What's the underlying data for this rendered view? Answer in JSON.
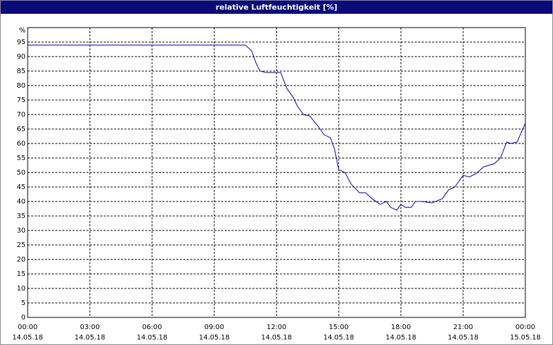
{
  "chart_data": {
    "type": "line",
    "title": "relative Luftfeuchtigkeit [%]",
    "y_label": "%",
    "x": [
      0,
      10,
      10.5,
      10.8,
      11,
      11.2,
      11.5,
      12,
      12.2,
      12.5,
      12.8,
      13,
      13.3,
      13.6,
      14,
      14.3,
      14.6,
      14.8,
      15,
      15.3,
      15.6,
      16,
      16.3,
      16.6,
      17,
      17.3,
      17.5,
      17.8,
      18,
      18.2,
      18.5,
      18.7,
      19,
      19.5,
      20,
      20.3,
      20.6,
      21,
      21.3,
      21.6,
      22,
      22.5,
      22.8,
      23.1,
      23.3,
      23.6,
      24
    ],
    "series": [
      {
        "color": "#0000a0",
        "values": [
          94,
          94,
          94,
          92,
          88,
          85,
          84.5,
          84.5,
          84.5,
          79,
          76,
          73,
          70,
          69.5,
          66,
          63,
          62,
          58,
          51,
          50,
          46,
          43,
          43,
          41,
          39,
          40,
          38,
          37,
          39,
          38,
          38,
          40,
          40,
          39.5,
          41,
          44,
          45,
          49,
          48.5,
          49.5,
          52,
          53,
          55,
          60.5,
          60,
          60.5,
          67
        ]
      }
    ],
    "xlim": [
      0,
      24
    ],
    "xticks": [
      {
        "value": 0,
        "label": "00:00"
      },
      {
        "value": 3,
        "label": "03:00"
      },
      {
        "value": 6,
        "label": "06:00"
      },
      {
        "value": 9,
        "label": "09:00"
      },
      {
        "value": 12,
        "label": "12:00"
      },
      {
        "value": 15,
        "label": "15:00"
      },
      {
        "value": 18,
        "label": "18:00"
      },
      {
        "value": 21,
        "label": "21:00"
      },
      {
        "value": 24,
        "label": "00:00"
      }
    ],
    "xtick_dates": [
      "14.05.18",
      "14.05.18",
      "14.05.18",
      "14.05.18",
      "14.05.18",
      "14.05.18",
      "14.05.18",
      "14.05.18",
      "15.05.18"
    ],
    "ylim": [
      0,
      100
    ],
    "yticks": [
      0,
      5,
      10,
      15,
      20,
      25,
      30,
      35,
      40,
      45,
      50,
      55,
      60,
      65,
      70,
      75,
      80,
      85,
      90,
      95
    ],
    "grid": true
  }
}
